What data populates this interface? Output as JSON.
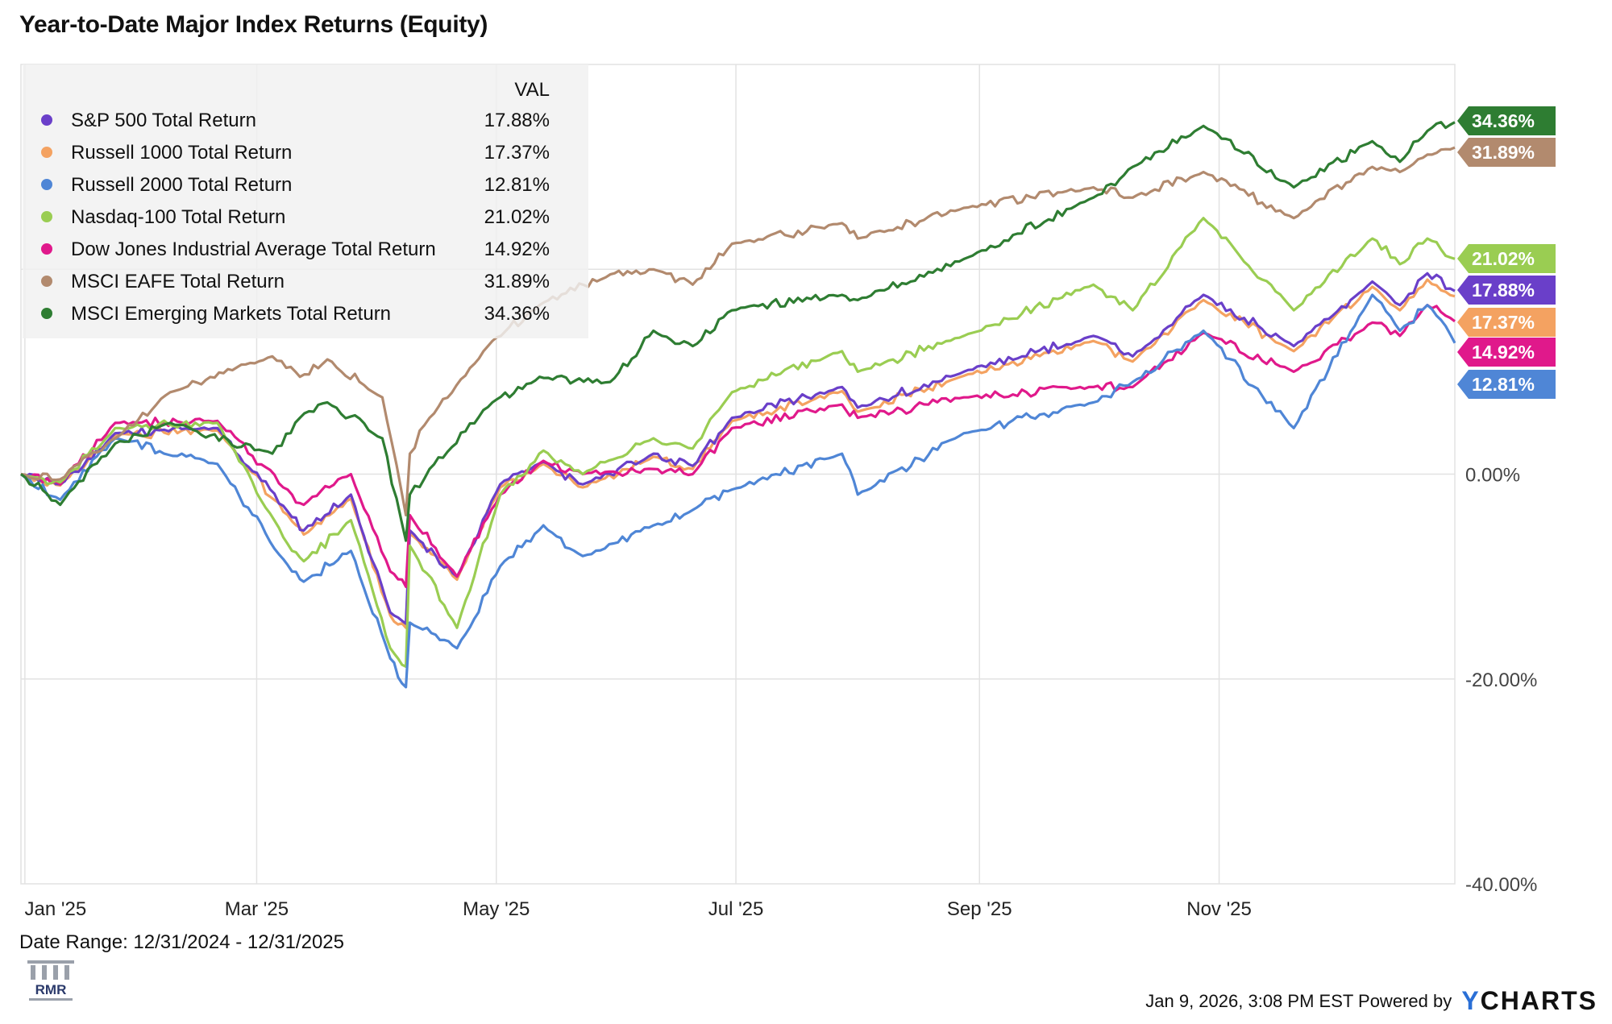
{
  "title": "Year-to-Date Major Index Returns (Equity)",
  "legend_header": "VAL",
  "date_range_text": "Date Range: 12/31/2024 - 12/31/2025",
  "footer": {
    "timestamp": "Jan 9, 2026, 3:08 PM EST Powered by",
    "brand_y": "Y",
    "brand_rest": "CHARTS"
  },
  "logo_text": "RMR",
  "chart_data": {
    "type": "line",
    "xlim": [
      "2024-12-31",
      "2025-12-31"
    ],
    "ylim": [
      -40,
      40
    ],
    "y_ticks": [
      0,
      -20,
      -40
    ],
    "y_tick_labels": [
      "0.00%",
      "-20.00%",
      "-40.00%"
    ],
    "x_ticks": [
      "2025-01-01",
      "2025-03-01",
      "2025-05-01",
      "2025-07-01",
      "2025-09-01",
      "2025-11-01"
    ],
    "x_tick_labels": [
      "Jan '25",
      "Mar '25",
      "May '25",
      "Jul '25",
      "Sep '25",
      "Nov '25"
    ],
    "grid": true,
    "legend_position": "top-left",
    "series": [
      {
        "name": "S&P 500 Total Return",
        "label": "17.88%",
        "color": "#6a3fc9",
        "x": [
          "2024-12-31",
          "2025-01-10",
          "2025-01-24",
          "2025-02-19",
          "2025-03-10",
          "2025-03-13",
          "2025-03-25",
          "2025-04-04",
          "2025-04-08",
          "2025-04-09",
          "2025-04-21",
          "2025-05-02",
          "2025-05-13",
          "2025-05-23",
          "2025-06-10",
          "2025-06-20",
          "2025-06-30",
          "2025-07-28",
          "2025-08-01",
          "2025-08-28",
          "2025-09-30",
          "2025-10-10",
          "2025-10-28",
          "2025-11-20",
          "2025-12-10",
          "2025-12-17",
          "2025-12-24",
          "2025-12-31"
        ],
        "y": [
          0,
          -1,
          4,
          4.5,
          -4.2,
          -5.5,
          -2,
          -13.5,
          -14.6,
          -5.5,
          -10,
          -1,
          1.2,
          -1,
          2,
          0.8,
          5.5,
          8.5,
          6.5,
          10,
          13.5,
          11.5,
          17.5,
          12.5,
          18.8,
          16.5,
          19.6,
          17.88
        ]
      },
      {
        "name": "Russell 1000 Total Return",
        "label": "17.37%",
        "color": "#f4a261",
        "x": [
          "2024-12-31",
          "2025-01-10",
          "2025-01-24",
          "2025-02-19",
          "2025-03-10",
          "2025-03-13",
          "2025-03-25",
          "2025-04-04",
          "2025-04-08",
          "2025-04-09",
          "2025-04-21",
          "2025-05-02",
          "2025-05-13",
          "2025-05-23",
          "2025-06-10",
          "2025-06-20",
          "2025-06-30",
          "2025-07-28",
          "2025-08-01",
          "2025-08-28",
          "2025-09-30",
          "2025-10-10",
          "2025-10-28",
          "2025-11-20",
          "2025-12-10",
          "2025-12-17",
          "2025-12-24",
          "2025-12-31"
        ],
        "y": [
          0,
          -1.1,
          3.8,
          4.3,
          -4.6,
          -5.9,
          -2.4,
          -13.8,
          -15,
          -5.8,
          -10.3,
          -1.3,
          1,
          -1.3,
          1.7,
          0.5,
          5.2,
          8.1,
          6.1,
          9.6,
          13,
          11,
          17,
          12,
          18.3,
          16,
          19,
          17.37
        ]
      },
      {
        "name": "Russell 2000 Total Return",
        "label": "12.81%",
        "color": "#4f86d6",
        "x": [
          "2024-12-31",
          "2025-01-10",
          "2025-01-24",
          "2025-02-19",
          "2025-03-10",
          "2025-03-13",
          "2025-03-25",
          "2025-04-04",
          "2025-04-08",
          "2025-04-09",
          "2025-04-21",
          "2025-05-02",
          "2025-05-13",
          "2025-05-23",
          "2025-06-10",
          "2025-06-20",
          "2025-06-30",
          "2025-07-28",
          "2025-08-01",
          "2025-08-28",
          "2025-09-30",
          "2025-10-10",
          "2025-10-28",
          "2025-11-20",
          "2025-12-10",
          "2025-12-17",
          "2025-12-24",
          "2025-12-31"
        ],
        "y": [
          0,
          -2.5,
          3.5,
          1,
          -9.5,
          -10.5,
          -7.5,
          -18,
          -20.8,
          -14.5,
          -17,
          -9,
          -5,
          -8,
          -5,
          -3.5,
          -1.5,
          2,
          -2,
          4,
          7,
          9,
          14,
          4.5,
          17.5,
          14,
          16.5,
          12.81
        ]
      },
      {
        "name": "Nasdaq-100 Total Return",
        "label": "21.02%",
        "color": "#9acd52",
        "x": [
          "2024-12-31",
          "2025-01-10",
          "2025-01-24",
          "2025-02-19",
          "2025-03-10",
          "2025-03-13",
          "2025-03-25",
          "2025-04-04",
          "2025-04-08",
          "2025-04-09",
          "2025-04-21",
          "2025-05-02",
          "2025-05-13",
          "2025-05-23",
          "2025-06-10",
          "2025-06-20",
          "2025-06-30",
          "2025-07-28",
          "2025-08-01",
          "2025-08-28",
          "2025-09-30",
          "2025-10-10",
          "2025-10-28",
          "2025-11-20",
          "2025-12-10",
          "2025-12-17",
          "2025-12-24",
          "2025-12-31"
        ],
        "y": [
          0,
          -0.8,
          4.5,
          5,
          -7.5,
          -8.5,
          -4.5,
          -17,
          -18.8,
          -7,
          -15,
          -2,
          2.3,
          0,
          3.5,
          2.5,
          8,
          12,
          10,
          13.5,
          18.5,
          16,
          25,
          16,
          23,
          20.5,
          23,
          21.02
        ]
      },
      {
        "name": "Dow Jones Industrial Average Total Return",
        "label": "14.92%",
        "color": "#e0198b",
        "x": [
          "2024-12-31",
          "2025-01-10",
          "2025-01-24",
          "2025-02-19",
          "2025-03-10",
          "2025-03-13",
          "2025-03-25",
          "2025-04-04",
          "2025-04-08",
          "2025-04-09",
          "2025-04-21",
          "2025-05-02",
          "2025-05-13",
          "2025-05-23",
          "2025-06-10",
          "2025-06-20",
          "2025-06-30",
          "2025-07-28",
          "2025-08-01",
          "2025-08-28",
          "2025-09-30",
          "2025-10-10",
          "2025-10-28",
          "2025-11-20",
          "2025-12-10",
          "2025-12-17",
          "2025-12-24",
          "2025-12-31"
        ],
        "y": [
          0,
          -1,
          5,
          5.2,
          -2,
          -3,
          0,
          -9.5,
          -11,
          -4,
          -10,
          -2,
          1.3,
          0,
          0.5,
          0,
          4.5,
          6.8,
          5.5,
          7.5,
          8.5,
          8.5,
          13.8,
          10,
          14.8,
          13.5,
          16.5,
          14.92
        ]
      },
      {
        "name": "MSCI EAFE Total Return",
        "label": "31.89%",
        "color": "#b28a6e",
        "x": [
          "2024-12-31",
          "2025-01-10",
          "2025-01-24",
          "2025-02-07",
          "2025-03-05",
          "2025-03-12",
          "2025-03-19",
          "2025-04-02",
          "2025-04-08",
          "2025-04-09",
          "2025-04-14",
          "2025-04-30",
          "2025-05-12",
          "2025-05-30",
          "2025-06-10",
          "2025-06-20",
          "2025-06-30",
          "2025-07-28",
          "2025-08-01",
          "2025-08-28",
          "2025-09-30",
          "2025-10-10",
          "2025-10-28",
          "2025-11-20",
          "2025-12-10",
          "2025-12-17",
          "2025-12-24",
          "2025-12-31"
        ],
        "y": [
          0,
          -0.5,
          3.5,
          8,
          11.5,
          9.5,
          11.2,
          7.5,
          -4,
          2,
          5.5,
          13,
          16.5,
          19.5,
          20,
          18.5,
          22.5,
          24.5,
          23,
          26,
          28,
          27,
          29.5,
          25,
          30,
          29.5,
          31.2,
          31.89
        ]
      },
      {
        "name": "MSCI Emerging Markets Total Return",
        "label": "34.36%",
        "color": "#2e7d32",
        "x": [
          "2024-12-31",
          "2025-01-10",
          "2025-01-24",
          "2025-02-07",
          "2025-03-05",
          "2025-03-12",
          "2025-03-19",
          "2025-04-02",
          "2025-04-08",
          "2025-04-09",
          "2025-04-14",
          "2025-04-30",
          "2025-05-12",
          "2025-05-30",
          "2025-06-10",
          "2025-06-20",
          "2025-06-30",
          "2025-07-28",
          "2025-08-01",
          "2025-08-28",
          "2025-09-30",
          "2025-10-10",
          "2025-10-28",
          "2025-11-20",
          "2025-12-10",
          "2025-12-17",
          "2025-12-24",
          "2025-12-31"
        ],
        "y": [
          0,
          -3,
          3,
          5,
          2,
          5.5,
          7,
          3.5,
          -6.5,
          -2,
          0.5,
          7,
          9.5,
          9,
          14,
          12.5,
          16,
          17.5,
          17,
          21,
          27,
          30,
          34,
          28,
          32.5,
          30.5,
          33.5,
          34.36
        ]
      }
    ]
  }
}
